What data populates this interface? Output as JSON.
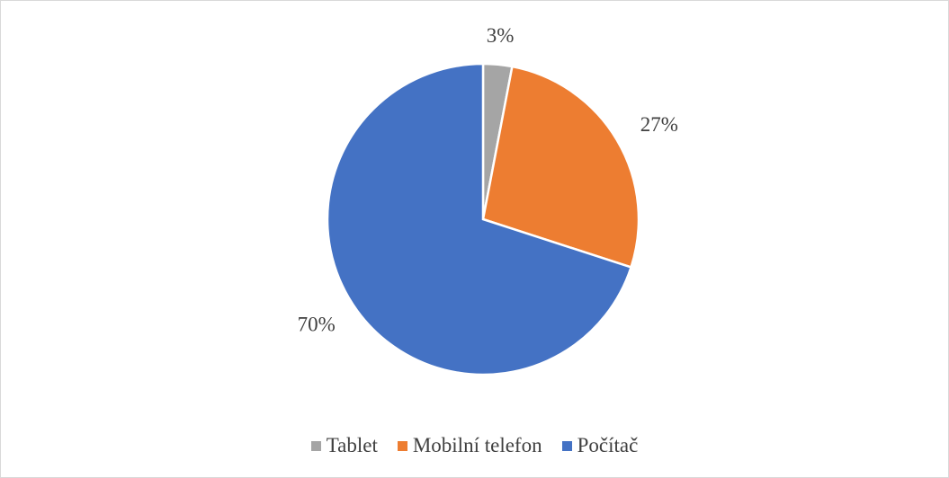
{
  "chart_data": {
    "type": "pie",
    "categories": [
      "Tablet",
      "Mobilní telefon",
      "Počítač"
    ],
    "values": [
      3,
      27,
      70
    ],
    "value_labels": [
      "3%",
      "27%",
      "70%"
    ],
    "colors": [
      "#a5a5a5",
      "#ed7d31",
      "#4472c4"
    ],
    "legend": "bottom"
  }
}
